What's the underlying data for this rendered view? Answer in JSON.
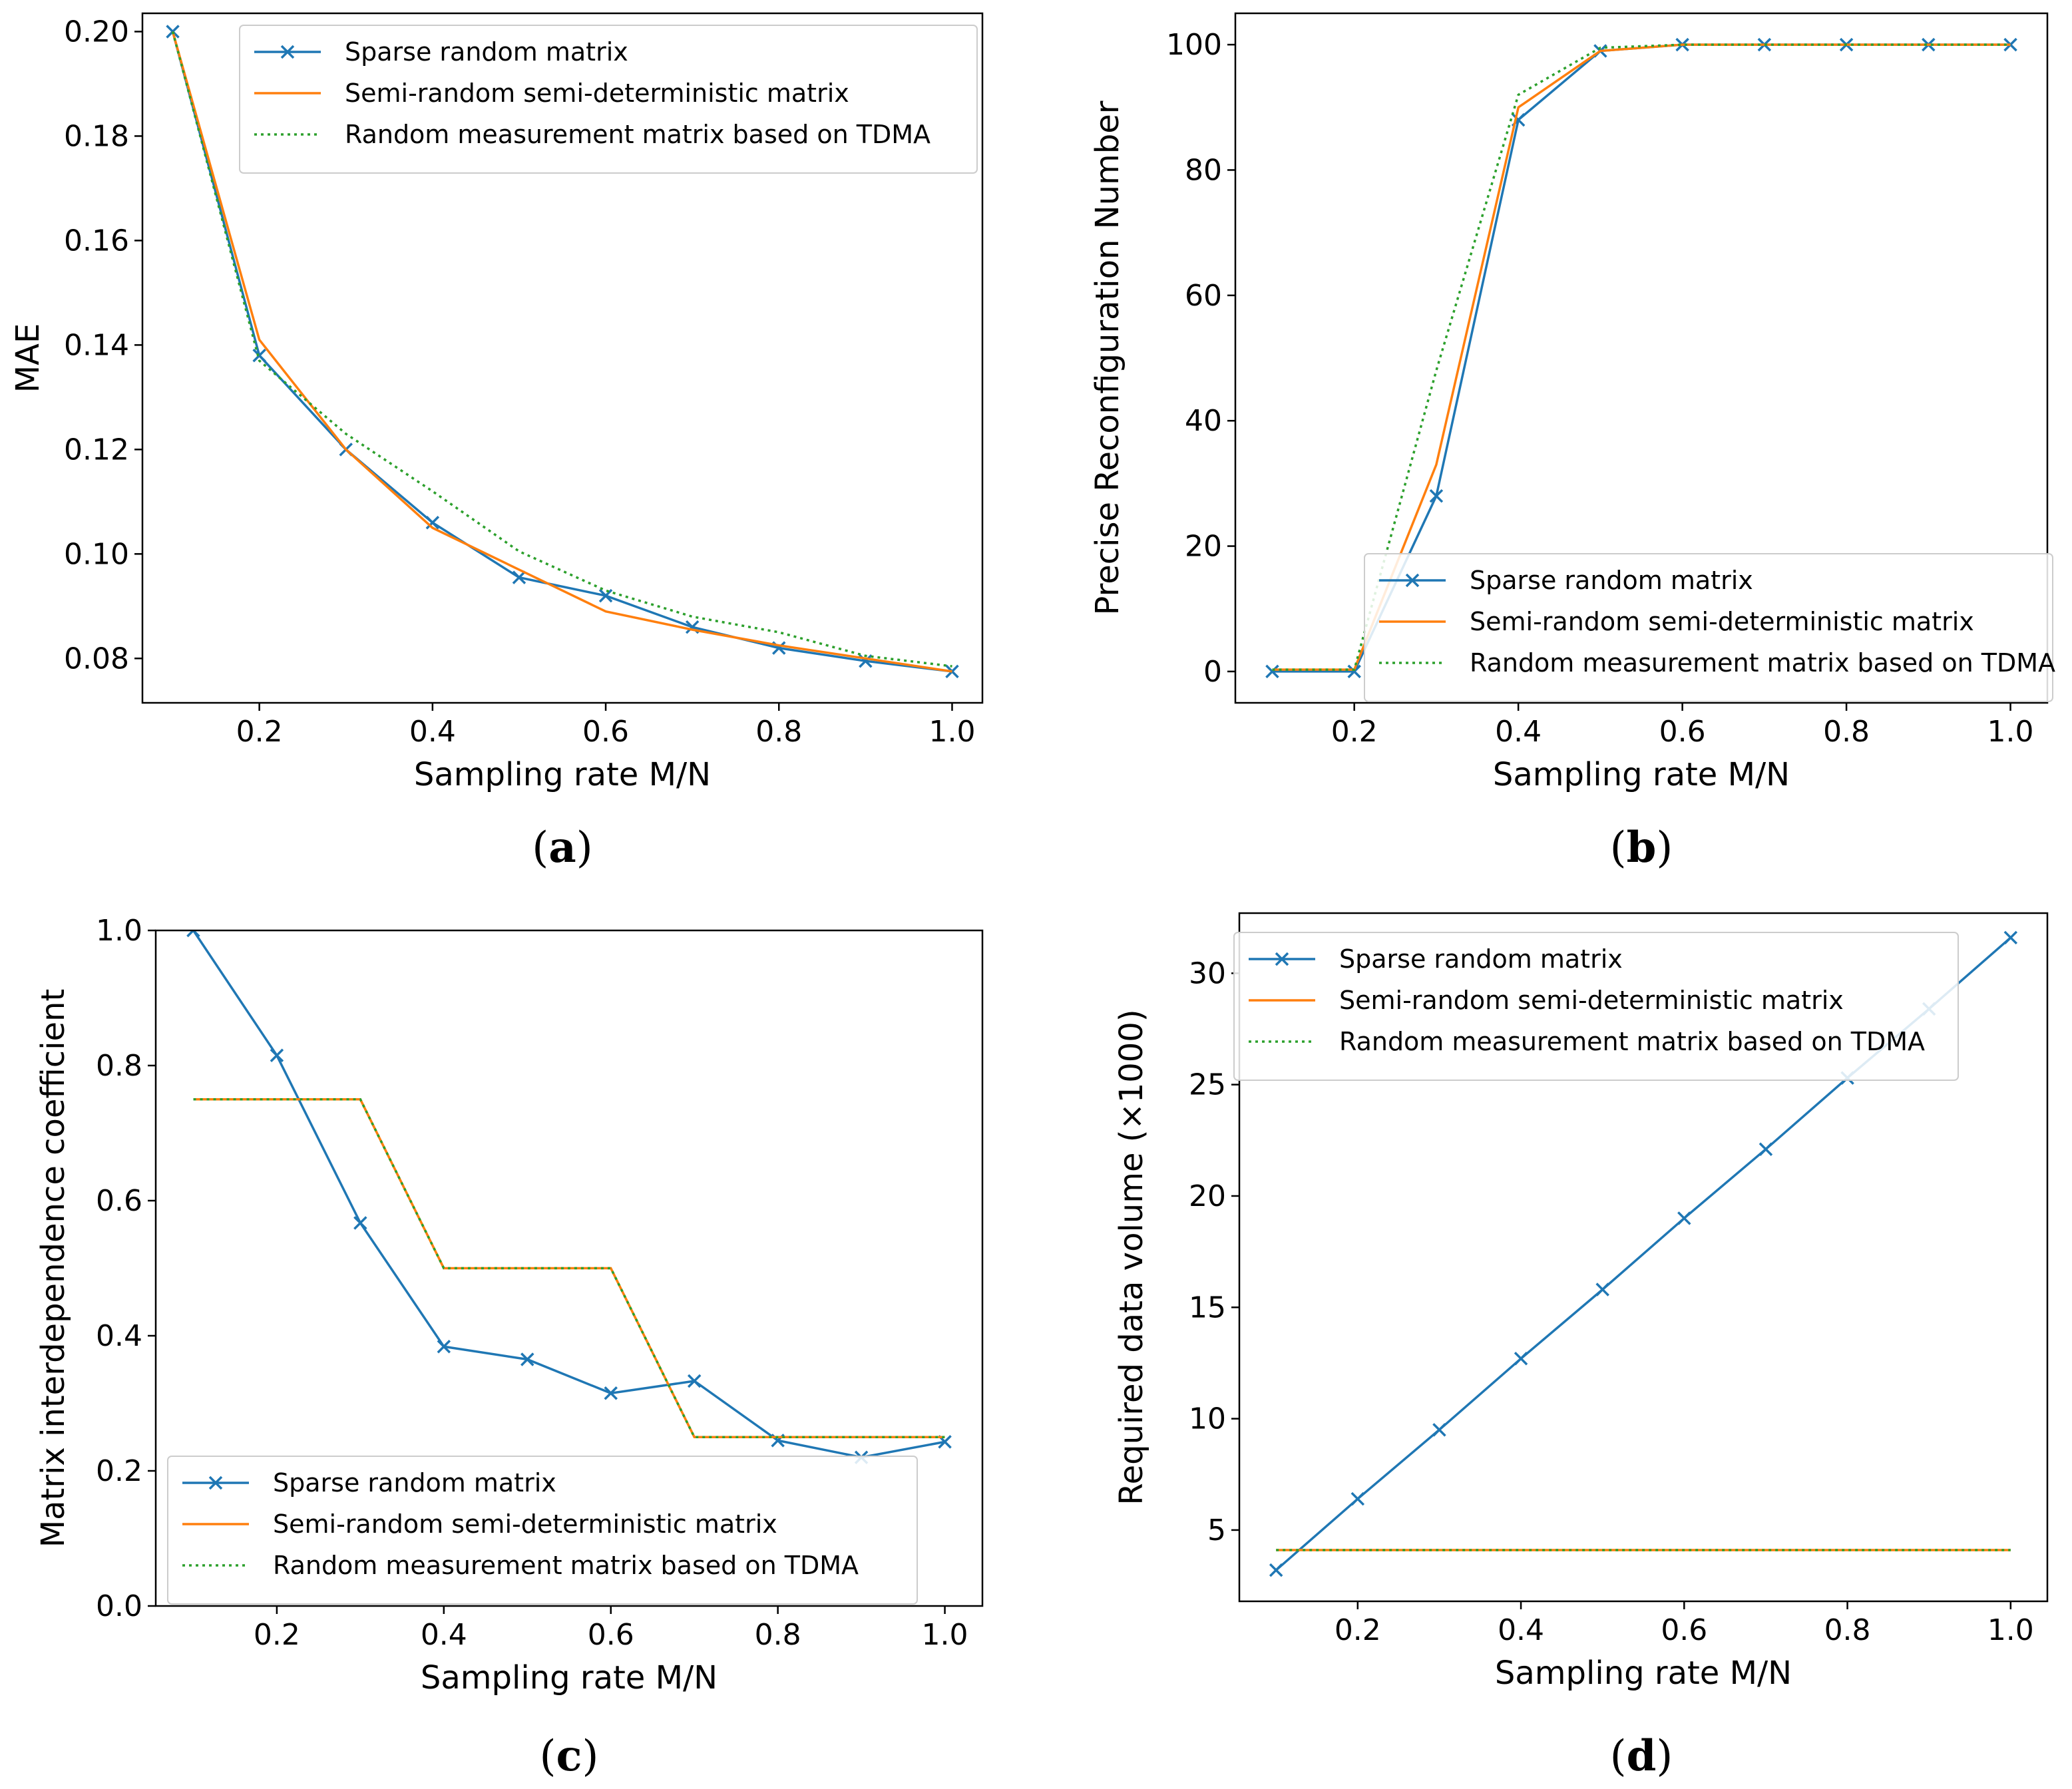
{
  "figure": {
    "colors": {
      "sparse": "#1f77b4",
      "semi": "#ff7f0e",
      "tdma": "#2ca02c"
    }
  },
  "chart_data": [
    {
      "id": "a",
      "type": "line",
      "caption": "a",
      "xlabel": "Sampling rate M/N",
      "ylabel": "MAE",
      "xlim": [
        0.065,
        1.035
      ],
      "ylim": [
        0.0715,
        0.2035
      ],
      "xticks": [
        0.2,
        0.4,
        0.6,
        0.8,
        1.0
      ],
      "xtick_labels": [
        "0.2",
        "0.4",
        "0.6",
        "0.8",
        "1.0"
      ],
      "yticks": [
        0.08,
        0.1,
        0.12,
        0.14,
        0.16,
        0.18,
        0.2
      ],
      "ytick_labels": [
        "0.08",
        "0.10",
        "0.12",
        "0.14",
        "0.16",
        "0.18",
        "0.20"
      ],
      "legend_position": "top-right",
      "x": [
        0.1,
        0.2,
        0.3,
        0.4,
        0.5,
        0.6,
        0.7,
        0.8,
        0.9,
        1.0
      ],
      "series": [
        {
          "name": "Sparse random matrix",
          "key": "sparse",
          "style": "solid-x",
          "values": [
            0.2,
            0.138,
            0.12,
            0.106,
            0.0955,
            0.092,
            0.086,
            0.082,
            0.0795,
            0.0775
          ]
        },
        {
          "name": "Semi-random semi-deterministic matrix",
          "key": "semi",
          "style": "solid",
          "values": [
            0.2,
            0.141,
            0.12,
            0.105,
            0.097,
            0.089,
            0.0855,
            0.0825,
            0.08,
            0.0775
          ]
        },
        {
          "name": "Random measurement matrix based on TDMA",
          "key": "tdma",
          "style": "dotted",
          "values": [
            0.2,
            0.137,
            0.123,
            0.112,
            0.1005,
            0.093,
            0.088,
            0.085,
            0.0805,
            0.0785
          ]
        }
      ]
    },
    {
      "id": "b",
      "type": "line",
      "caption": "b",
      "xlabel": "Sampling rate M/N",
      "ylabel": "Precise Reconfiguration Number",
      "xlim": [
        0.055,
        1.045
      ],
      "ylim": [
        -5,
        105
      ],
      "xticks": [
        0.2,
        0.4,
        0.6,
        0.8,
        1.0
      ],
      "xtick_labels": [
        "0.2",
        "0.4",
        "0.6",
        "0.8",
        "1.0"
      ],
      "yticks": [
        0,
        20,
        40,
        60,
        80,
        100
      ],
      "ytick_labels": [
        "0",
        "20",
        "40",
        "60",
        "80",
        "100"
      ],
      "legend_position": "bottom-right",
      "x": [
        0.1,
        0.2,
        0.3,
        0.4,
        0.5,
        0.6,
        0.7,
        0.8,
        0.9,
        1.0
      ],
      "series": [
        {
          "name": "Sparse random matrix",
          "key": "sparse",
          "style": "solid-x",
          "values": [
            0,
            0,
            28,
            88,
            99,
            100,
            100,
            100,
            100,
            100
          ]
        },
        {
          "name": "Semi-random semi-deterministic matrix",
          "key": "semi",
          "style": "solid",
          "values": [
            0.3,
            0.3,
            33,
            90,
            99,
            100,
            100,
            100,
            100,
            100
          ]
        },
        {
          "name": "Random measurement matrix based on TDMA",
          "key": "tdma",
          "style": "dotted",
          "values": [
            0.3,
            0.3,
            48,
            92,
            99.5,
            100,
            100,
            100,
            100,
            100
          ]
        }
      ]
    },
    {
      "id": "c",
      "type": "line",
      "caption": "c",
      "xlabel": "Sampling rate M/N",
      "ylabel": "Matrix interdependence coefficient",
      "xlim": [
        0.055,
        1.045
      ],
      "ylim": [
        0.0,
        1.0
      ],
      "xticks": [
        0.2,
        0.4,
        0.6,
        0.8,
        1.0
      ],
      "xtick_labels": [
        "0.2",
        "0.4",
        "0.6",
        "0.8",
        "1.0"
      ],
      "yticks": [
        0.0,
        0.2,
        0.4,
        0.6,
        0.8,
        1.0
      ],
      "ytick_labels": [
        "0.0",
        "0.2",
        "0.4",
        "0.6",
        "0.8",
        "1.0"
      ],
      "legend_position": "bottom-right",
      "x": [
        0.1,
        0.2,
        0.3,
        0.4,
        0.5,
        0.6,
        0.7,
        0.8,
        0.9,
        1.0
      ],
      "series": [
        {
          "name": "Sparse random matrix",
          "key": "sparse",
          "style": "solid-x",
          "values": [
            1.0,
            0.815,
            0.567,
            0.384,
            0.365,
            0.315,
            0.333,
            0.245,
            0.22,
            0.243
          ]
        },
        {
          "name": "Semi-random semi-deterministic matrix",
          "key": "semi",
          "style": "solid",
          "values": [
            0.75,
            0.75,
            0.75,
            0.5,
            0.5,
            0.5,
            0.25,
            0.25,
            0.25,
            0.25
          ]
        },
        {
          "name": "Random measurement matrix based on TDMA",
          "key": "tdma",
          "style": "dotted",
          "values": [
            0.75,
            0.75,
            0.75,
            0.5,
            0.5,
            0.5,
            0.25,
            0.25,
            0.25,
            0.25
          ]
        }
      ]
    },
    {
      "id": "d",
      "type": "line",
      "caption": "d",
      "xlabel": "Sampling rate M/N",
      "ylabel": "Required data volume (×1000)",
      "xlim": [
        0.055,
        1.045
      ],
      "ylim": [
        1.8,
        32.7
      ],
      "xticks": [
        0.2,
        0.4,
        0.6,
        0.8,
        1.0
      ],
      "xtick_labels": [
        "0.2",
        "0.4",
        "0.6",
        "0.8",
        "1.0"
      ],
      "yticks": [
        5,
        10,
        15,
        20,
        25,
        30
      ],
      "ytick_labels": [
        "5",
        "10",
        "15",
        "20",
        "25",
        "30"
      ],
      "legend_position": "top-left",
      "x": [
        0.1,
        0.2,
        0.3,
        0.4,
        0.5,
        0.6,
        0.7,
        0.8,
        0.9,
        1.0
      ],
      "series": [
        {
          "name": "Sparse random matrix",
          "key": "sparse",
          "style": "solid-x",
          "values": [
            3.2,
            6.4,
            9.5,
            12.7,
            15.8,
            19.0,
            22.1,
            25.3,
            28.4,
            31.6
          ]
        },
        {
          "name": "Semi-random semi-deterministic matrix",
          "key": "semi",
          "style": "solid",
          "values": [
            4.1,
            4.1,
            4.1,
            4.1,
            4.1,
            4.1,
            4.1,
            4.1,
            4.1,
            4.1
          ]
        },
        {
          "name": "Random measurement matrix based on TDMA",
          "key": "tdma",
          "style": "dotted",
          "values": [
            4.1,
            4.1,
            4.1,
            4.1,
            4.1,
            4.1,
            4.1,
            4.1,
            4.1,
            4.1
          ]
        }
      ]
    }
  ]
}
